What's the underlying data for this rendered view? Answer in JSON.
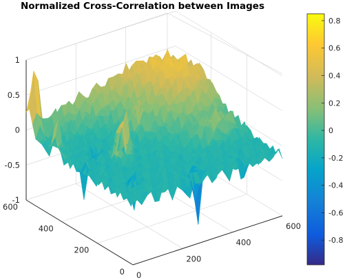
{
  "chart_data": {
    "type": "surface",
    "title": "Normalized Cross-Correlation between Images",
    "xlabel": "",
    "ylabel": "",
    "zlabel": "",
    "x_ticks": [
      "0",
      "200",
      "400",
      "600"
    ],
    "y_ticks": [
      "0",
      "200",
      "400",
      "600"
    ],
    "z_ticks": [
      "-1",
      "-0.5",
      "0",
      "0.5",
      "1"
    ],
    "xlim": [
      0,
      600
    ],
    "ylim": [
      0,
      600
    ],
    "zlim": [
      -1,
      1
    ],
    "colormap": "parula",
    "grid": true,
    "colorbar": {
      "ticks": [
        "0.8",
        "0.6",
        "0.4",
        "0.2",
        "0",
        "-0.2",
        "-0.4",
        "-0.6",
        "-0.8"
      ],
      "tick_values": [
        0.8,
        0.6,
        0.4,
        0.2,
        0,
        -0.2,
        -0.4,
        -0.6,
        -0.8
      ],
      "range": [
        -0.98,
        0.85
      ]
    },
    "peak": {
      "z": 0.85
    },
    "min": {
      "z": -0.98
    }
  }
}
